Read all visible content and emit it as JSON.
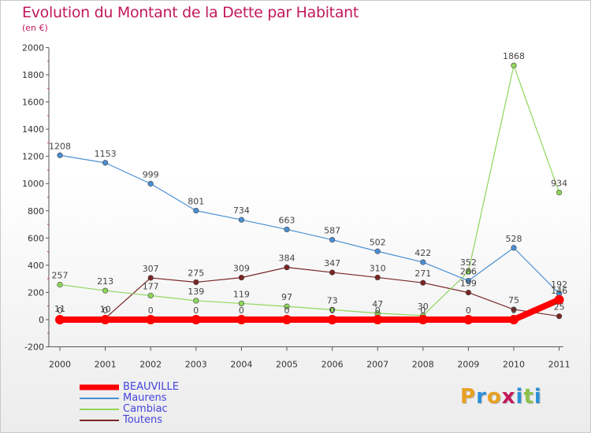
{
  "title": "Evolution du Montant de la Dette par Habitant",
  "subtitle": "(en €)",
  "logo_text": "Proxiti",
  "chart_data": {
    "type": "line",
    "x": [
      "2000",
      "2001",
      "2002",
      "2003",
      "2004",
      "2005",
      "2006",
      "2007",
      "2008",
      "2009",
      "2010",
      "2011"
    ],
    "ylim": [
      -200,
      2000
    ],
    "yticks": [
      -200,
      0,
      200,
      400,
      600,
      800,
      1000,
      1200,
      1400,
      1600,
      1800,
      2000
    ],
    "grid": false,
    "legend_position": "bottom-left",
    "series": [
      {
        "name": "BEAUVILLE",
        "color": "#ff0000",
        "values": [
          0,
          0,
          0,
          0,
          0,
          0,
          0,
          0,
          0,
          0,
          0,
          146
        ]
      },
      {
        "name": "Maurens",
        "color": "#4a8fd4",
        "values": [
          1208,
          1153,
          999,
          801,
          734,
          663,
          587,
          502,
          422,
          286,
          528,
          192
        ]
      },
      {
        "name": "Cambiac",
        "color": "#8fd65a",
        "values": [
          257,
          213,
          177,
          139,
          119,
          97,
          73,
          47,
          30,
          352,
          1868,
          934
        ]
      },
      {
        "name": "Toutens",
        "color": "#7a2525",
        "values": [
          11,
          10,
          307,
          275,
          309,
          384,
          347,
          310,
          271,
          199,
          75,
          25
        ]
      }
    ]
  }
}
